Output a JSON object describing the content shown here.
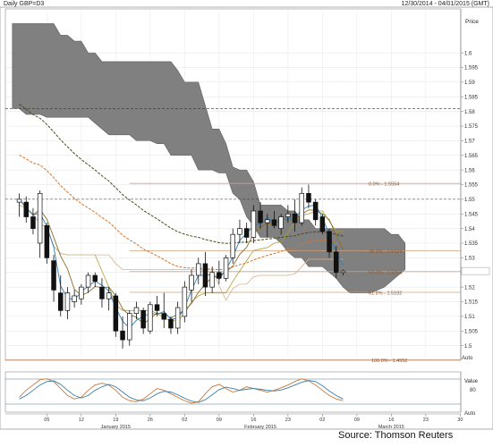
{
  "header": {
    "title": "Daily GBP=D3",
    "date_range": "12/30/2014 - 04/01/2015 (GMT)"
  },
  "source": "Source: Thomson Reuters",
  "chart_data": {
    "type": "candlestick",
    "instrument": "GBP=D3",
    "ylabel": "Price",
    "ylim": [
      1.495,
      1.615
    ],
    "yticks": [
      1.5,
      1.505,
      1.51,
      1.515,
      1.52,
      1.525,
      1.53,
      1.535,
      1.54,
      1.545,
      1.55,
      1.555,
      1.56,
      1.565,
      1.57,
      1.575,
      1.58,
      1.585,
      1.59,
      1.595,
      1.6
    ],
    "ytick_labels": [
      "1.5",
      "1.505",
      "1.51",
      "1.515",
      "1.52",
      "1.525",
      "1.53",
      "1.535",
      "1.54",
      "1.545",
      "1.55",
      "1.555",
      "1.56",
      "1.565",
      "1.57",
      "1.575",
      "1.58",
      "1.585",
      "1.59",
      "1.595",
      "1.6"
    ],
    "grid": true,
    "x_day_ticks": [
      {
        "label": "05",
        "i": 4
      },
      {
        "label": "12",
        "i": 9
      },
      {
        "label": "19",
        "i": 14
      },
      {
        "label": "26",
        "i": 19
      },
      {
        "label": "02",
        "i": 24
      },
      {
        "label": "09",
        "i": 29
      },
      {
        "label": "16",
        "i": 34
      },
      {
        "label": "23",
        "i": 39
      },
      {
        "label": "02",
        "i": 44
      },
      {
        "label": "09",
        "i": 49
      },
      {
        "label": "16",
        "i": 54
      },
      {
        "label": "23",
        "i": 59
      },
      {
        "label": "30",
        "i": 64
      }
    ],
    "x_month_labels": [
      {
        "label": "January 2015",
        "i": 14
      },
      {
        "label": "February 2015",
        "i": 35
      },
      {
        "label": "March 2015",
        "i": 54
      }
    ],
    "bars": [
      {
        "o": 1.549,
        "h": 1.552,
        "l": 1.544,
        "c": 1.55
      },
      {
        "o": 1.549,
        "h": 1.551,
        "l": 1.542,
        "c": 1.544
      },
      {
        "o": 1.544,
        "h": 1.547,
        "l": 1.538,
        "c": 1.54
      },
      {
        "o": 1.535,
        "h": 1.553,
        "l": 1.53,
        "c": 1.552
      },
      {
        "o": 1.541,
        "h": 1.542,
        "l": 1.528,
        "c": 1.53
      },
      {
        "o": 1.529,
        "h": 1.531,
        "l": 1.515,
        "c": 1.519
      },
      {
        "o": 1.518,
        "h": 1.524,
        "l": 1.51,
        "c": 1.512
      },
      {
        "o": 1.512,
        "h": 1.52,
        "l": 1.509,
        "c": 1.518
      },
      {
        "o": 1.515,
        "h": 1.519,
        "l": 1.513,
        "c": 1.517
      },
      {
        "o": 1.516,
        "h": 1.521,
        "l": 1.514,
        "c": 1.52
      },
      {
        "o": 1.52,
        "h": 1.525,
        "l": 1.518,
        "c": 1.524
      },
      {
        "o": 1.524,
        "h": 1.525,
        "l": 1.52,
        "c": 1.522
      },
      {
        "o": 1.52,
        "h": 1.523,
        "l": 1.513,
        "c": 1.516
      },
      {
        "o": 1.516,
        "h": 1.52,
        "l": 1.512,
        "c": 1.518
      },
      {
        "o": 1.517,
        "h": 1.518,
        "l": 1.503,
        "c": 1.505
      },
      {
        "o": 1.505,
        "h": 1.51,
        "l": 1.499,
        "c": 1.502
      },
      {
        "o": 1.502,
        "h": 1.512,
        "l": 1.5,
        "c": 1.511
      },
      {
        "o": 1.511,
        "h": 1.515,
        "l": 1.509,
        "c": 1.513
      },
      {
        "o": 1.512,
        "h": 1.513,
        "l": 1.504,
        "c": 1.506
      },
      {
        "o": 1.505,
        "h": 1.515,
        "l": 1.504,
        "c": 1.514
      },
      {
        "o": 1.514,
        "h": 1.517,
        "l": 1.51,
        "c": 1.512
      },
      {
        "o": 1.511,
        "h": 1.518,
        "l": 1.506,
        "c": 1.509
      },
      {
        "o": 1.509,
        "h": 1.51,
        "l": 1.504,
        "c": 1.506
      },
      {
        "o": 1.506,
        "h": 1.515,
        "l": 1.504,
        "c": 1.513
      },
      {
        "o": 1.51,
        "h": 1.522,
        "l": 1.508,
        "c": 1.52
      },
      {
        "o": 1.519,
        "h": 1.526,
        "l": 1.515,
        "c": 1.524
      },
      {
        "o": 1.524,
        "h": 1.53,
        "l": 1.521,
        "c": 1.528
      },
      {
        "o": 1.528,
        "h": 1.532,
        "l": 1.517,
        "c": 1.52
      },
      {
        "o": 1.52,
        "h": 1.527,
        "l": 1.518,
        "c": 1.525
      },
      {
        "o": 1.525,
        "h": 1.529,
        "l": 1.521,
        "c": 1.523
      },
      {
        "o": 1.523,
        "h": 1.531,
        "l": 1.522,
        "c": 1.53
      },
      {
        "o": 1.53,
        "h": 1.54,
        "l": 1.528,
        "c": 1.538
      },
      {
        "o": 1.538,
        "h": 1.543,
        "l": 1.535,
        "c": 1.54
      },
      {
        "o": 1.54,
        "h": 1.542,
        "l": 1.535,
        "c": 1.537
      },
      {
        "o": 1.537,
        "h": 1.548,
        "l": 1.535,
        "c": 1.546
      },
      {
        "o": 1.546,
        "h": 1.549,
        "l": 1.54,
        "c": 1.542
      },
      {
        "o": 1.542,
        "h": 1.545,
        "l": 1.537,
        "c": 1.543
      },
      {
        "o": 1.543,
        "h": 1.546,
        "l": 1.54,
        "c": 1.541
      },
      {
        "o": 1.54,
        "h": 1.545,
        "l": 1.538,
        "c": 1.544
      },
      {
        "o": 1.544,
        "h": 1.548,
        "l": 1.542,
        "c": 1.545
      },
      {
        "o": 1.545,
        "h": 1.55,
        "l": 1.539,
        "c": 1.542
      },
      {
        "o": 1.542,
        "h": 1.554,
        "l": 1.541,
        "c": 1.552
      },
      {
        "o": 1.552,
        "h": 1.555,
        "l": 1.547,
        "c": 1.549
      },
      {
        "o": 1.549,
        "h": 1.55,
        "l": 1.541,
        "c": 1.543
      },
      {
        "o": 1.544,
        "h": 1.545,
        "l": 1.538,
        "c": 1.539
      },
      {
        "o": 1.539,
        "h": 1.54,
        "l": 1.53,
        "c": 1.532
      },
      {
        "o": 1.532,
        "h": 1.534,
        "l": 1.523,
        "c": 1.525
      },
      {
        "o": 1.525,
        "h": 1.526,
        "l": 1.524,
        "c": 1.5255
      }
    ],
    "ichimoku_cloud": {
      "name": "Ichimoku cloud",
      "upper": [
        1.61,
        1.61,
        1.61,
        1.61,
        1.61,
        1.61,
        1.61,
        1.606,
        1.606,
        1.604,
        1.604,
        1.6,
        1.6,
        1.597,
        1.597,
        1.597,
        1.597,
        1.597,
        1.597,
        1.597,
        1.597,
        1.597,
        1.597,
        1.597,
        1.594,
        1.59,
        1.59,
        1.59,
        1.582,
        1.574,
        1.574,
        1.569,
        1.561,
        1.56,
        1.56,
        1.556,
        1.548,
        1.548,
        1.548,
        1.548,
        1.546,
        1.546,
        1.543,
        1.543,
        1.54,
        1.54,
        1.54,
        1.54,
        1.54,
        1.54,
        1.54,
        1.54,
        1.54,
        1.54,
        1.54,
        1.538,
        1.538,
        1.535
      ],
      "lower": [
        1.581,
        1.581,
        1.579,
        1.579,
        1.579,
        1.578,
        1.578,
        1.578,
        1.578,
        1.578,
        1.578,
        1.578,
        1.576,
        1.574,
        1.572,
        1.572,
        1.572,
        1.572,
        1.57,
        1.57,
        1.57,
        1.569,
        1.569,
        1.565,
        1.565,
        1.565,
        1.565,
        1.56,
        1.56,
        1.56,
        1.559,
        1.559,
        1.552,
        1.55,
        1.544,
        1.541,
        1.537,
        1.537,
        1.537,
        1.535,
        1.532,
        1.53,
        1.53,
        1.527,
        1.527,
        1.527,
        1.525,
        1.523,
        1.52,
        1.518,
        1.518,
        1.518,
        1.518,
        1.519,
        1.52,
        1.522,
        1.524,
        1.526
      ]
    },
    "fibonacci": [
      {
        "label": "0.0% - 1.5554",
        "value": 1.5554
      },
      {
        "label": "38.2% - 1.5324",
        "value": 1.5324
      },
      {
        "label": "50.0% - 1.5253",
        "value": 1.5253
      },
      {
        "label": "61.8% - 1.5182",
        "value": 1.5182
      },
      {
        "label": "100.0% - 1.4952",
        "value": 1.4952
      }
    ],
    "horizontal_lines": [
      1.581,
      1.55
    ],
    "colors": {
      "cloud": "#7a7a7a",
      "cloud_edge": "#555555",
      "bull": "#ffffff",
      "bear": "#111111",
      "fib": "#d2a07a",
      "tenkan": "#2b7fb8",
      "kijun": "#8a6f2a",
      "ma_dark": "#4a4a1a",
      "ma_orange": "#d9732a",
      "ma_tan": "#d8b28a",
      "ma_olive": "#b0a030",
      "stoch_k": "#c8783a",
      "stoch_d": "#3a7fa8"
    },
    "indicator_panel": {
      "ylabel": "Value",
      "ytick_labels": [
        "80"
      ],
      "stoch_k": [
        35,
        55,
        70,
        85,
        88,
        80,
        60,
        40,
        30,
        35,
        55,
        70,
        75,
        70,
        55,
        35,
        25,
        22,
        30,
        45,
        60,
        55,
        45,
        35,
        25,
        18,
        22,
        45,
        65,
        72,
        60,
        50,
        55,
        65,
        60,
        55,
        50,
        55,
        62,
        70,
        80,
        88,
        82,
        70,
        55,
        40,
        30,
        25
      ],
      "stoch_d": [
        30,
        40,
        55,
        70,
        80,
        82,
        72,
        55,
        40,
        33,
        40,
        55,
        65,
        72,
        65,
        50,
        35,
        27,
        25,
        33,
        45,
        52,
        50,
        42,
        32,
        24,
        20,
        28,
        42,
        57,
        64,
        60,
        55,
        58,
        60,
        58,
        55,
        53,
        56,
        62,
        70,
        78,
        83,
        80,
        68,
        53,
        40,
        30
      ]
    },
    "auto_label": "Auto"
  }
}
